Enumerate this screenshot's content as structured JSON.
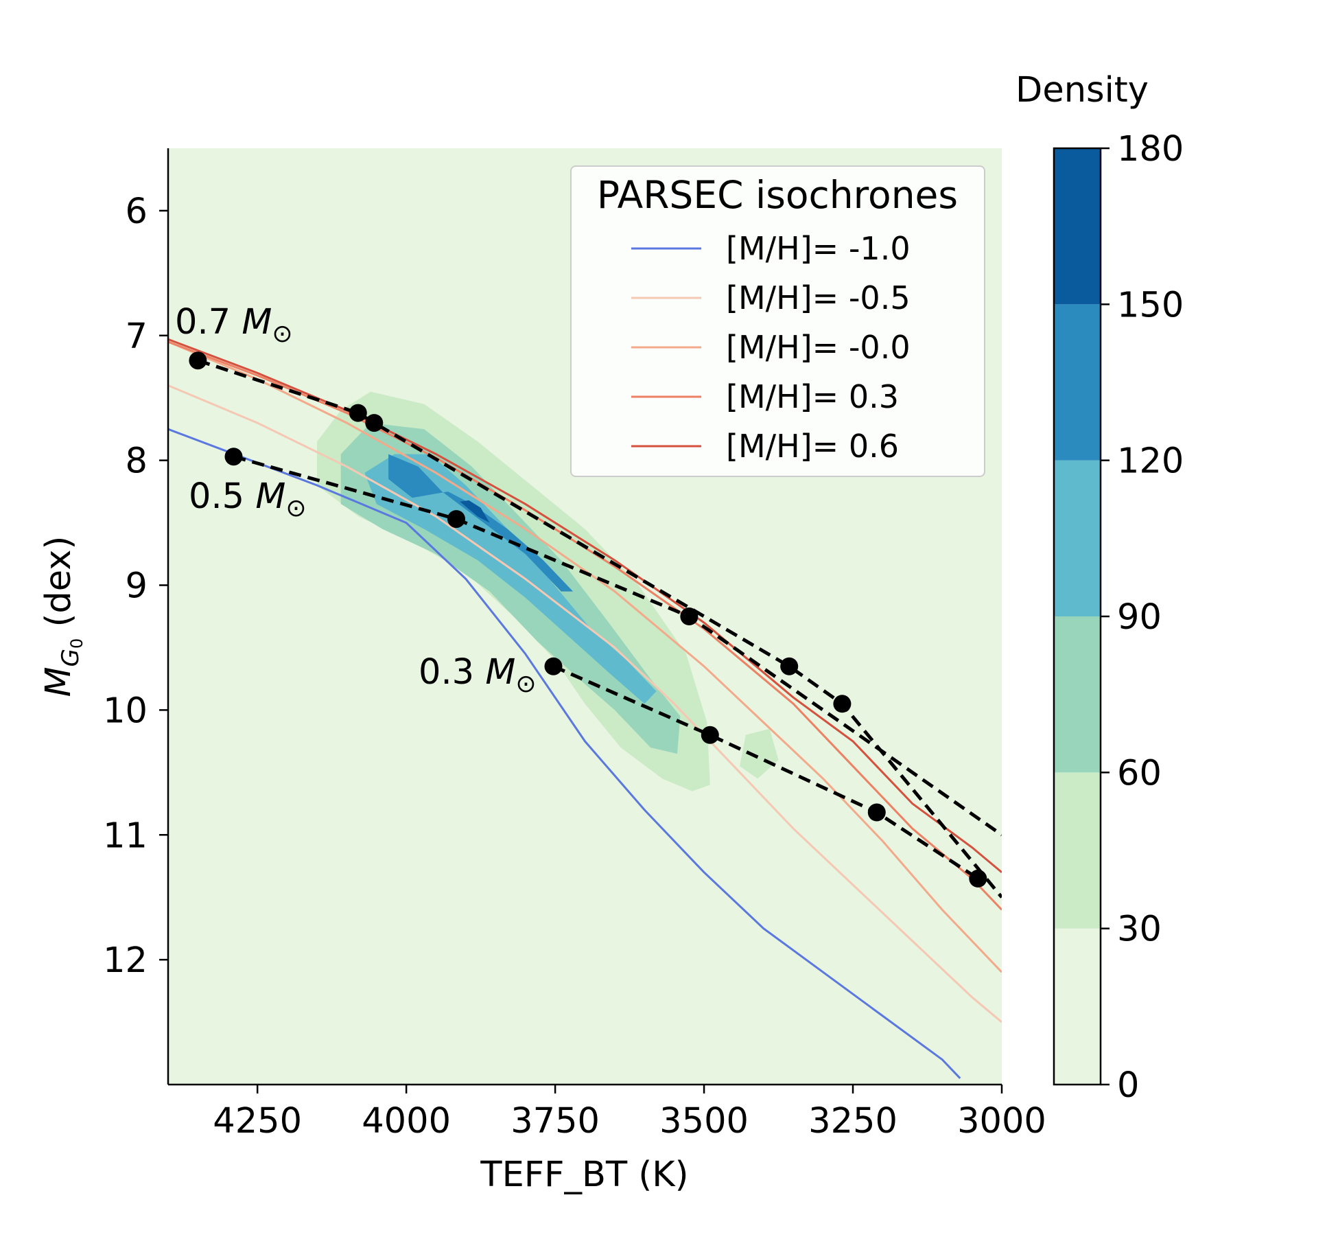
{
  "chart_data": {
    "type": "contour",
    "xlabel": "TEFF_BT (K)",
    "ylabel": "M_{G_0} (dex)",
    "xlim": [
      4400,
      3000
    ],
    "ylim": [
      13.0,
      5.5
    ],
    "x_ticks": [
      4250,
      4000,
      3750,
      3500,
      3250,
      3000
    ],
    "y_ticks": [
      6,
      7,
      8,
      9,
      10,
      11,
      12
    ],
    "colorbar": {
      "title": "Density",
      "ticks": [
        0,
        30,
        60,
        90,
        120,
        150,
        180
      ],
      "levels": [
        0,
        30,
        60,
        90,
        120,
        150,
        180
      ],
      "colors": [
        "#e7f5e1",
        "#cbeac6",
        "#98d5bb",
        "#5fbacd",
        "#2b8bbf",
        "#0a5b9d"
      ]
    },
    "density_contours": [
      {
        "level": 30,
        "points": [
          [
            4060,
            7.45
          ],
          [
            3970,
            7.55
          ],
          [
            3880,
            7.85
          ],
          [
            3790,
            8.2
          ],
          [
            3700,
            8.55
          ],
          [
            3610,
            9.0
          ],
          [
            3530,
            9.55
          ],
          [
            3495,
            10.1
          ],
          [
            3490,
            10.6
          ],
          [
            3520,
            10.65
          ],
          [
            3570,
            10.55
          ],
          [
            3640,
            10.3
          ],
          [
            3700,
            9.95
          ],
          [
            3750,
            9.6
          ],
          [
            3820,
            9.25
          ],
          [
            3900,
            8.9
          ],
          [
            3990,
            8.65
          ],
          [
            4080,
            8.45
          ],
          [
            4150,
            8.2
          ],
          [
            4150,
            7.85
          ],
          [
            4110,
            7.6
          ]
        ]
      },
      {
        "level": 30,
        "points": [
          [
            3430,
            10.2
          ],
          [
            3390,
            10.15
          ],
          [
            3375,
            10.4
          ],
          [
            3410,
            10.55
          ],
          [
            3440,
            10.45
          ]
        ]
      },
      {
        "level": 60,
        "points": [
          [
            4060,
            7.7
          ],
          [
            3970,
            7.75
          ],
          [
            3890,
            8.05
          ],
          [
            3820,
            8.4
          ],
          [
            3740,
            8.8
          ],
          [
            3660,
            9.3
          ],
          [
            3590,
            9.75
          ],
          [
            3540,
            10.05
          ],
          [
            3545,
            10.35
          ],
          [
            3590,
            10.3
          ],
          [
            3650,
            10.0
          ],
          [
            3710,
            9.75
          ],
          [
            3780,
            9.45
          ],
          [
            3860,
            9.05
          ],
          [
            3950,
            8.75
          ],
          [
            4040,
            8.55
          ],
          [
            4110,
            8.35
          ],
          [
            4110,
            7.95
          ]
        ]
      },
      {
        "level": 90,
        "points": [
          [
            4020,
            7.95
          ],
          [
            3960,
            7.95
          ],
          [
            3900,
            8.2
          ],
          [
            3830,
            8.55
          ],
          [
            3760,
            8.95
          ],
          [
            3690,
            9.35
          ],
          [
            3630,
            9.6
          ],
          [
            3580,
            9.85
          ],
          [
            3600,
            9.95
          ],
          [
            3660,
            9.7
          ],
          [
            3730,
            9.4
          ],
          [
            3800,
            9.1
          ],
          [
            3880,
            8.8
          ],
          [
            3970,
            8.55
          ],
          [
            4050,
            8.35
          ],
          [
            4070,
            8.1
          ]
        ]
      },
      {
        "level": 120,
        "points": [
          [
            4030,
            7.95
          ],
          [
            3980,
            8.05
          ],
          [
            3940,
            8.25
          ],
          [
            3870,
            8.5
          ],
          [
            3800,
            8.75
          ],
          [
            3740,
            9.05
          ],
          [
            3720,
            9.05
          ],
          [
            3770,
            8.8
          ],
          [
            3830,
            8.55
          ],
          [
            3890,
            8.35
          ],
          [
            3930,
            8.25
          ],
          [
            3990,
            8.3
          ],
          [
            4030,
            8.15
          ]
        ]
      },
      {
        "level": 150,
        "points": [
          [
            3910,
            8.33
          ],
          [
            3880,
            8.45
          ],
          [
            3860,
            8.5
          ],
          [
            3875,
            8.38
          ],
          [
            3895,
            8.32
          ]
        ]
      }
    ],
    "series": [
      {
        "name": "[M/H]= -1.0",
        "color": "#5b78e0",
        "x": [
          4400,
          4150,
          4000,
          3900,
          3800,
          3700,
          3600,
          3500,
          3400,
          3300,
          3200,
          3100,
          3070
        ],
        "y": [
          7.75,
          8.2,
          8.5,
          8.95,
          9.55,
          10.25,
          10.8,
          11.3,
          11.75,
          12.1,
          12.45,
          12.8,
          12.95
        ]
      },
      {
        "name": "[M/H]= -0.5",
        "color": "#f5c8b4",
        "x": [
          4400,
          4250,
          4100,
          3950,
          3800,
          3650,
          3550,
          3450,
          3350,
          3250,
          3150,
          3050,
          3000
        ],
        "y": [
          7.4,
          7.7,
          8.05,
          8.45,
          8.95,
          9.5,
          9.95,
          10.45,
          10.95,
          11.4,
          11.85,
          12.3,
          12.5
        ]
      },
      {
        "name": "[M/H]= -0.0",
        "color": "#f3a98a",
        "x": [
          4400,
          4250,
          4100,
          3950,
          3800,
          3650,
          3500,
          3400,
          3300,
          3200,
          3100,
          3000
        ],
        "y": [
          7.05,
          7.35,
          7.7,
          8.1,
          8.55,
          9.05,
          9.65,
          10.1,
          10.55,
          11.05,
          11.6,
          12.1
        ]
      },
      {
        "name": "[M/H]= 0.3",
        "color": "#ee8063",
        "x": [
          4400,
          4250,
          4100,
          3950,
          3800,
          3650,
          3500,
          3350,
          3250,
          3150,
          3050,
          3000
        ],
        "y": [
          7.05,
          7.32,
          7.62,
          7.98,
          8.4,
          8.85,
          9.35,
          9.95,
          10.45,
          10.95,
          11.35,
          11.6
        ]
      },
      {
        "name": "[M/H]= 0.6",
        "color": "#d6503e",
        "x": [
          4400,
          4250,
          4100,
          3950,
          3800,
          3650,
          3500,
          3350,
          3250,
          3150,
          3050,
          3000
        ],
        "y": [
          7.03,
          7.3,
          7.6,
          7.95,
          8.35,
          8.8,
          9.3,
          9.9,
          10.25,
          10.75,
          11.1,
          11.3
        ]
      }
    ],
    "mass_tracks": [
      {
        "label": "0.7 M_⊙",
        "x": [
          4350,
          4081,
          4054,
          3357,
          3268,
          3000
        ],
        "y": [
          7.2,
          7.62,
          7.7,
          9.65,
          9.95,
          11.5
        ]
      },
      {
        "label": "0.5 M_⊙",
        "x": [
          4290,
          3916,
          3525,
          3000
        ],
        "y": [
          7.97,
          8.47,
          9.25,
          11.0
        ]
      },
      {
        "label": "0.3 M_⊙",
        "x": [
          3753,
          3490,
          3210,
          3040
        ],
        "y": [
          9.65,
          10.2,
          10.82,
          11.35
        ]
      }
    ],
    "legend": {
      "title": "PARSEC isochrones",
      "position": "top-right"
    }
  }
}
